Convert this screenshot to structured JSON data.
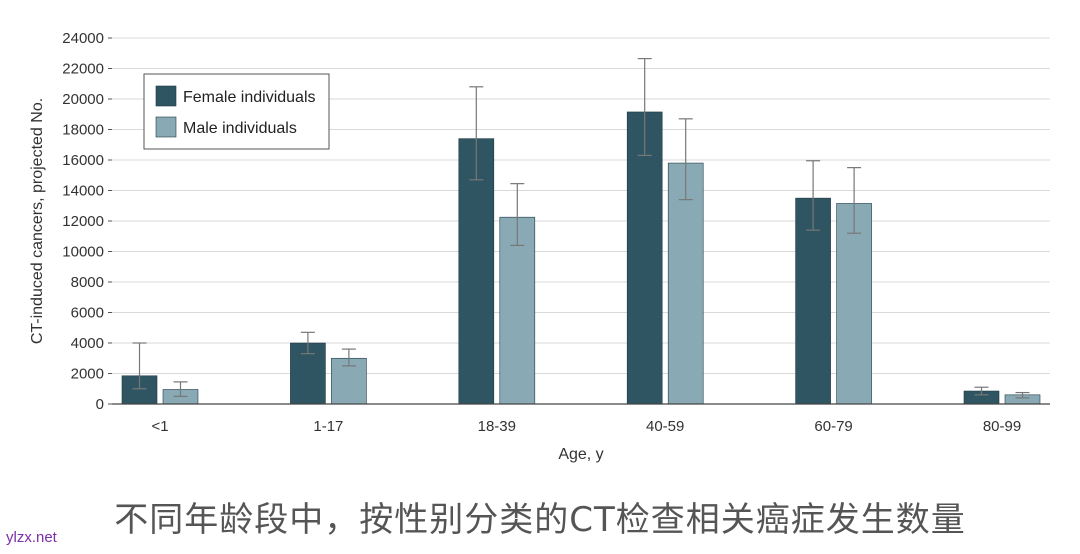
{
  "chart_data": {
    "type": "bar",
    "categories": [
      "<1",
      "1-17",
      "18-39",
      "40-59",
      "60-79",
      "80-99"
    ],
    "series": [
      {
        "name": "Female individuals",
        "color": "#2e5561",
        "values": [
          1850,
          4000,
          17400,
          19150,
          13500,
          850
        ],
        "error_low": [
          1000,
          3300,
          14700,
          16300,
          11400,
          600
        ],
        "error_high": [
          4000,
          4700,
          20800,
          22650,
          15950,
          1100
        ]
      },
      {
        "name": "Male individuals",
        "color": "#89aab5",
        "values": [
          950,
          3000,
          12250,
          15800,
          13150,
          600
        ],
        "error_low": [
          500,
          2500,
          10400,
          13400,
          11200,
          400
        ],
        "error_high": [
          1450,
          3600,
          14450,
          18700,
          15500,
          750
        ]
      }
    ],
    "xlabel": "Age, y",
    "ylabel": "CT-induced cancers, projected No.",
    "ylim": [
      0,
      24000
    ],
    "yticks": [
      0,
      2000,
      4000,
      6000,
      8000,
      10000,
      12000,
      14000,
      16000,
      18000,
      20000,
      22000,
      24000
    ],
    "grid": "horizontal",
    "legend_position": "top-left",
    "error_bars": true
  },
  "caption": "不同年龄段中，按性别分类的CT检查相关癌症发生数量",
  "watermark": "ylzx.net"
}
